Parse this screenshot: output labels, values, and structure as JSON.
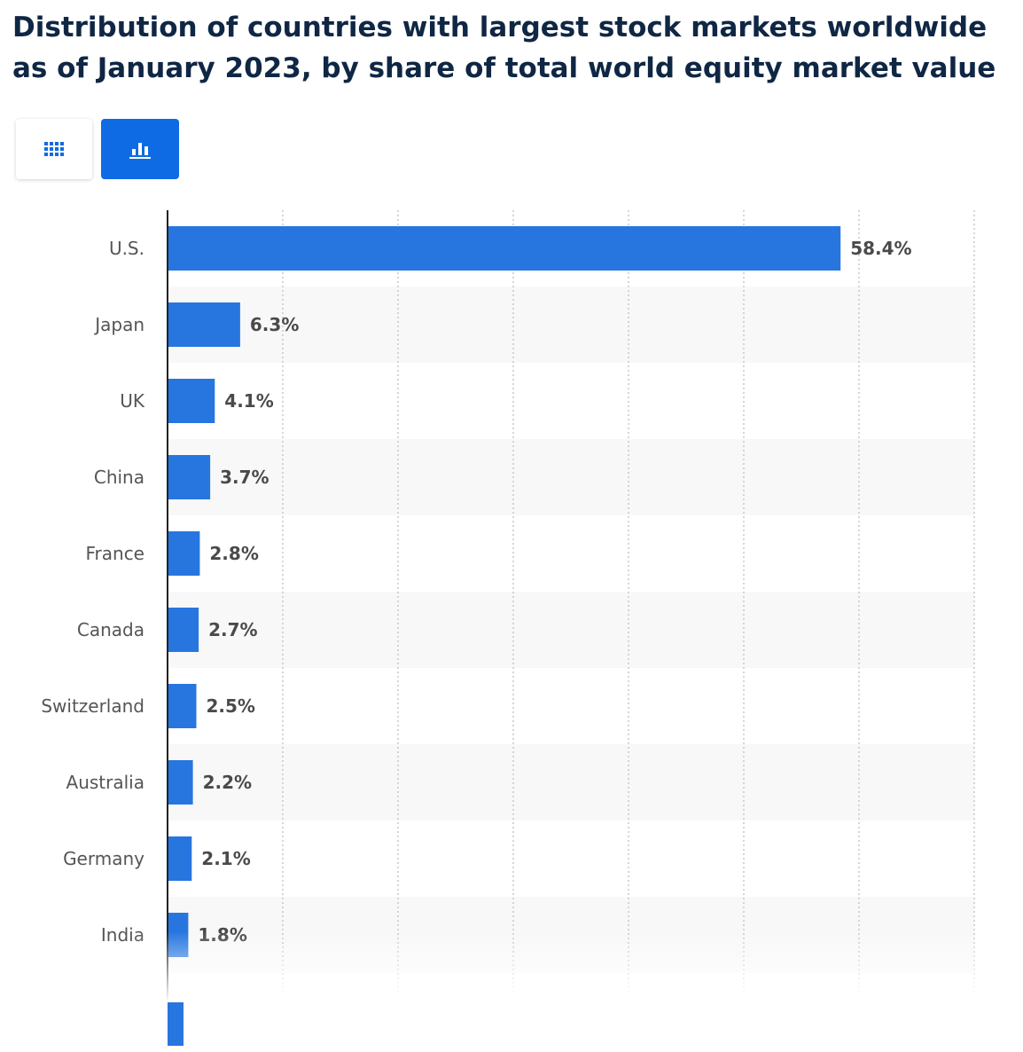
{
  "title": "Distribution of countries with largest stock markets worldwide as of January 2023, by share of total world equity market value",
  "view_toggle": {
    "table_icon": "table-grid-icon",
    "chart_icon": "bar-chart-icon",
    "active": "chart"
  },
  "colors": {
    "bar": "#2776e0",
    "accent": "#0f6be3",
    "band": "#f8f8f8",
    "title": "#0f2744"
  },
  "chart_data": {
    "type": "bar",
    "orientation": "horizontal",
    "title": "Distribution of countries with largest stock markets worldwide as of January 2023, by share of total world equity market value",
    "categories": [
      "U.S.",
      "Japan",
      "UK",
      "China",
      "France",
      "Canada",
      "Switzerland",
      "Australia",
      "Germany",
      "India"
    ],
    "values": [
      58.4,
      6.3,
      4.1,
      3.7,
      2.8,
      2.7,
      2.5,
      2.2,
      2.1,
      1.8
    ],
    "value_labels": [
      "58.4%",
      "6.3%",
      "4.1%",
      "3.7%",
      "2.8%",
      "2.7%",
      "2.5%",
      "2.2%",
      "2.1%",
      "1.8%"
    ],
    "xlim": [
      0,
      70
    ],
    "grid": true,
    "legend": "none",
    "truncated_below": true
  }
}
